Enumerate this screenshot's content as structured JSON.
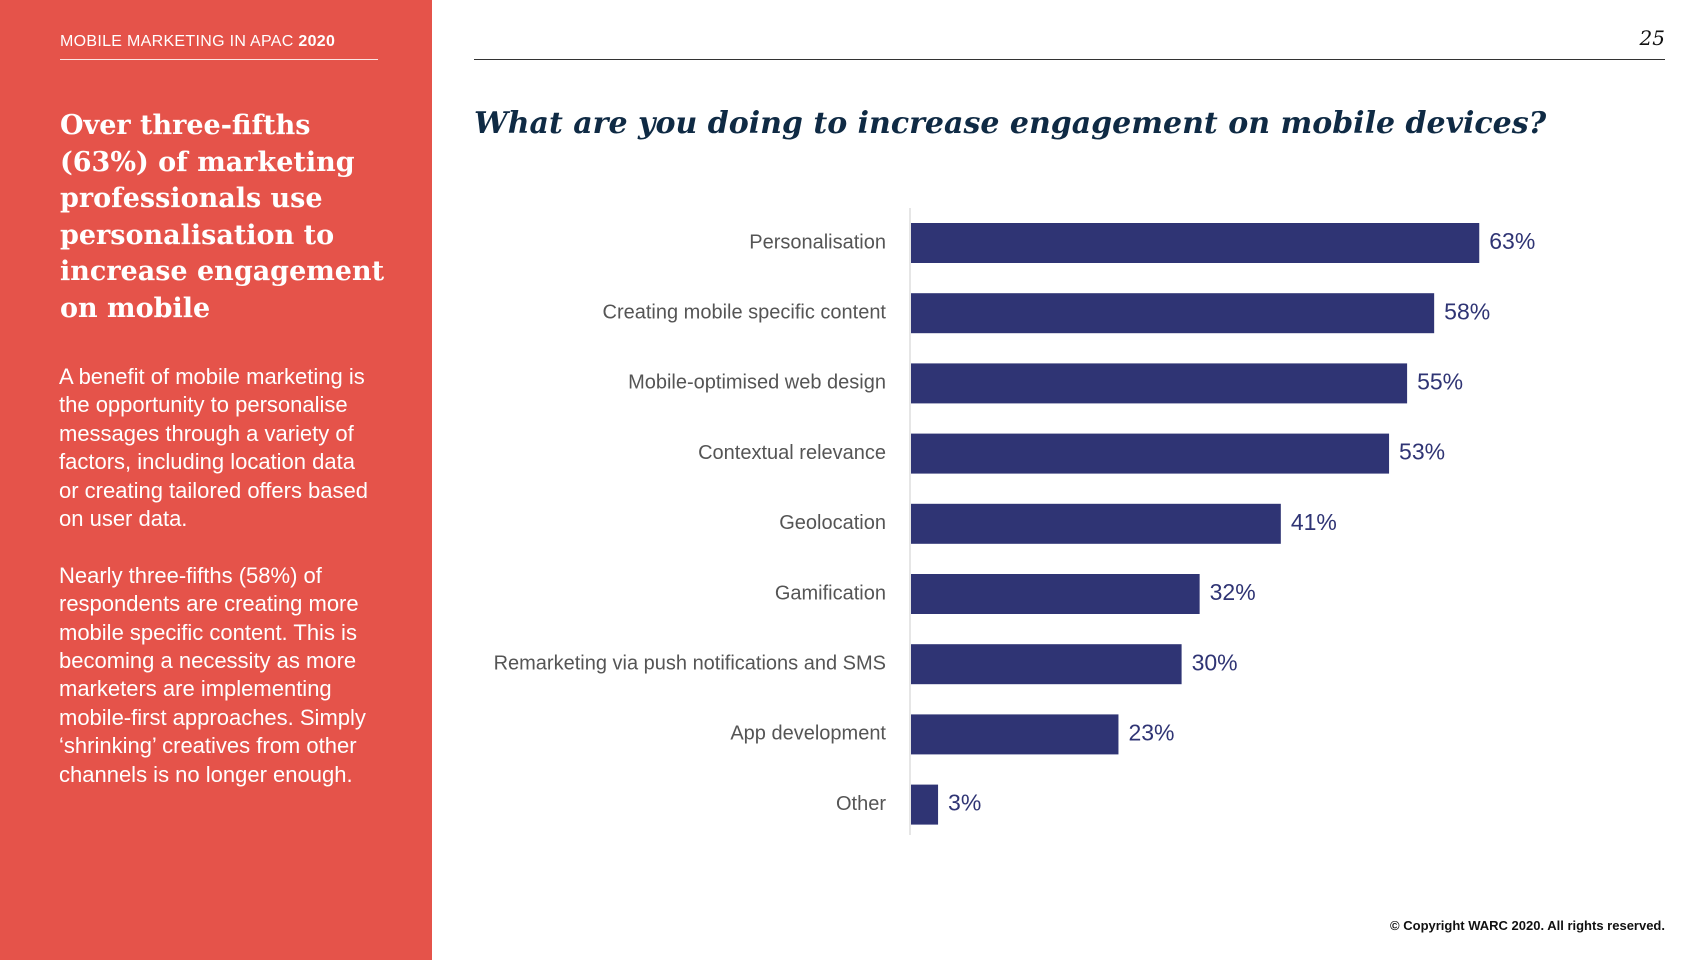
{
  "sidebar": {
    "kicker_text": "MOBILE MARKETING IN APAC",
    "kicker_year": "2020",
    "headline": "Over three-fifths (63%) of marketing professionals use personalisation to increase engagement on mobile",
    "paragraphs": [
      "A benefit of mobile marketing is the opportunity to personalise messages through a variety of factors, including location data or creating tailored offers based on user data.",
      "Nearly three-fifths (58%) of respondents are creating more mobile specific content. This is becoming a necessity as more marketers are implementing mobile-first approaches. Simply ‘shrinking’ creatives from other channels is no longer enough."
    ]
  },
  "page_number": "25",
  "footer": {
    "copyright": "© Copyright WARC 2020. All rights reserved."
  },
  "colors": {
    "sidebar_bg": "#e5534a",
    "bar": "#2f3474",
    "title": "#0f2a44",
    "category_label": "#555555",
    "value_label": "#2f3474"
  },
  "chart_data": {
    "type": "bar",
    "orientation": "horizontal",
    "title": "What are you doing to increase engagement on mobile devices?",
    "categories": [
      "Personalisation",
      "Creating mobile specific content",
      "Mobile-optimised web design",
      "Contextual relevance",
      "Geolocation",
      "Gamification",
      "Remarketing via push notifications and SMS",
      "App development",
      "Other"
    ],
    "values": [
      63,
      58,
      55,
      53,
      41,
      32,
      30,
      23,
      3
    ],
    "value_labels": [
      "63%",
      "58%",
      "55%",
      "53%",
      "41%",
      "32%",
      "30%",
      "23%",
      "3%"
    ],
    "unit": "%",
    "xlim": [
      0,
      100
    ],
    "xlabel": "",
    "ylabel": "",
    "grid": false,
    "legend": "none"
  }
}
